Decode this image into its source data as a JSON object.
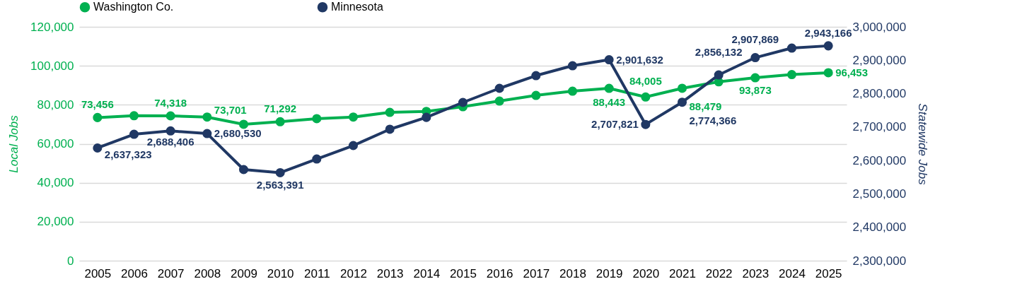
{
  "chart_data": {
    "type": "line",
    "categories": [
      "2005",
      "2006",
      "2007",
      "2008",
      "2009",
      "2010",
      "2011",
      "2012",
      "2013",
      "2014",
      "2015",
      "2016",
      "2017",
      "2018",
      "2019",
      "2020",
      "2021",
      "2022",
      "2023",
      "2024",
      "2025"
    ],
    "ylabel": "Local Jobs",
    "y2label": "Statewide Jobs",
    "ylim": [
      0,
      120000
    ],
    "yticks": [
      0,
      {
        "value": 20000,
        "label": "20,000"
      },
      {
        "value": 40000,
        "label": "40,000"
      },
      {
        "value": 60000,
        "label": "60,000"
      },
      {
        "value": 80000,
        "label": "80,000"
      },
      {
        "value": 100000,
        "label": "100,000"
      },
      {
        "value": 120000,
        "label": "120,000"
      }
    ],
    "y2lim": [
      2300000,
      3000000
    ],
    "y2ticks": [
      {
        "value": 2300000,
        "label": "2,300,000"
      },
      {
        "value": 2400000,
        "label": "2,400,000"
      },
      {
        "value": 2500000,
        "label": "2,500,000"
      },
      {
        "value": 2600000,
        "label": "2,600,000"
      },
      {
        "value": 2700000,
        "label": "2,700,000"
      },
      {
        "value": 2800000,
        "label": "2,800,000"
      },
      {
        "value": 2900000,
        "label": "2,900,000"
      },
      {
        "value": 3000000,
        "label": "3,000,000"
      }
    ],
    "grid": "y",
    "legend": "top",
    "marker": "circle",
    "series": [
      {
        "name": "Washington Co.",
        "color": "#00b050",
        "values": [
          73456,
          74400,
          74318,
          73701,
          70000,
          71292,
          72900,
          73700,
          76100,
          76600,
          79000,
          81900,
          84800,
          87000,
          88443,
          84005,
          88479,
          91800,
          93873,
          95500,
          96453
        ],
        "value_labels": [
          "73,456",
          null,
          "74,318",
          "73,701",
          null,
          "71,292",
          null,
          null,
          null,
          null,
          null,
          null,
          null,
          null,
          "88,443",
          "84,005",
          "88,479",
          null,
          "93,873",
          null,
          "96,453"
        ]
      },
      {
        "name": "Minnesota",
        "color": "#203864",
        "axis": "y2",
        "values": [
          2637323,
          2678500,
          2688406,
          2680530,
          2572800,
          2563391,
          2604500,
          2644700,
          2693400,
          2729000,
          2773700,
          2816000,
          2854000,
          2883600,
          2901632,
          2707821,
          2774366,
          2856132,
          2907869,
          2936500,
          2943166
        ],
        "value_labels": [
          "2,637,323",
          null,
          "2,688,406",
          "2,680,530",
          null,
          "2,563,391",
          null,
          null,
          null,
          null,
          null,
          null,
          null,
          null,
          "2,901,632",
          "2,707,821",
          "2,774,366",
          "2,856,132",
          "2,907,869",
          null,
          "2,943,166"
        ]
      }
    ]
  }
}
